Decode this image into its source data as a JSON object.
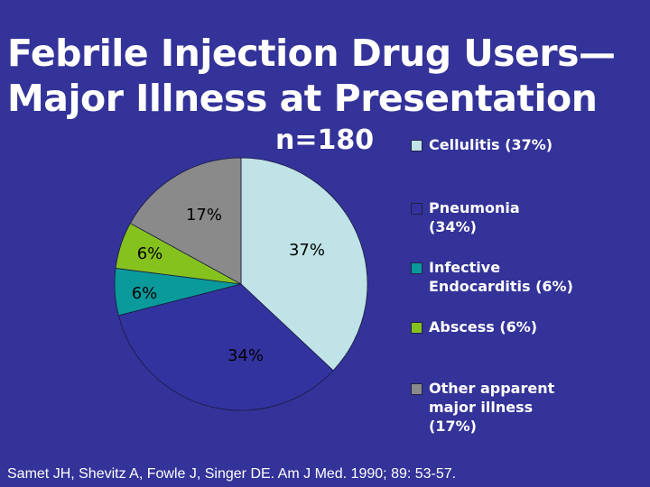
{
  "title": {
    "line1": "Febrile Injection Drug Users—",
    "line2": "Major Illness at Presentation"
  },
  "sample_size": "n=180",
  "citation": "Samet JH, Shevitz A, Fowle J, Singer DE.  Am J Med. 1990; 89: 53-57.",
  "chart_data": {
    "type": "pie",
    "title": "Febrile Injection Drug Users—Major Illness at Presentation",
    "subtitle": "n=180",
    "slices": [
      {
        "name": "Cellulitis (37%)",
        "value": 37,
        "label": "37%",
        "color": "#bfe3e6"
      },
      {
        "name": "Pneumonia (34%)",
        "value": 34,
        "label": "34%",
        "color": "#3333a0"
      },
      {
        "name": "Infective Endocarditis (6%)",
        "value": 6,
        "label": "6%",
        "color": "#0a9a9c"
      },
      {
        "name": "Abscess (6%)",
        "value": 6,
        "label": "6%",
        "color": "#86c21e"
      },
      {
        "name": "Other apparent major illness (17%)",
        "value": 17,
        "label": "17%",
        "color": "#8a8a8a"
      }
    ],
    "legend_position": "right",
    "grid": false
  }
}
